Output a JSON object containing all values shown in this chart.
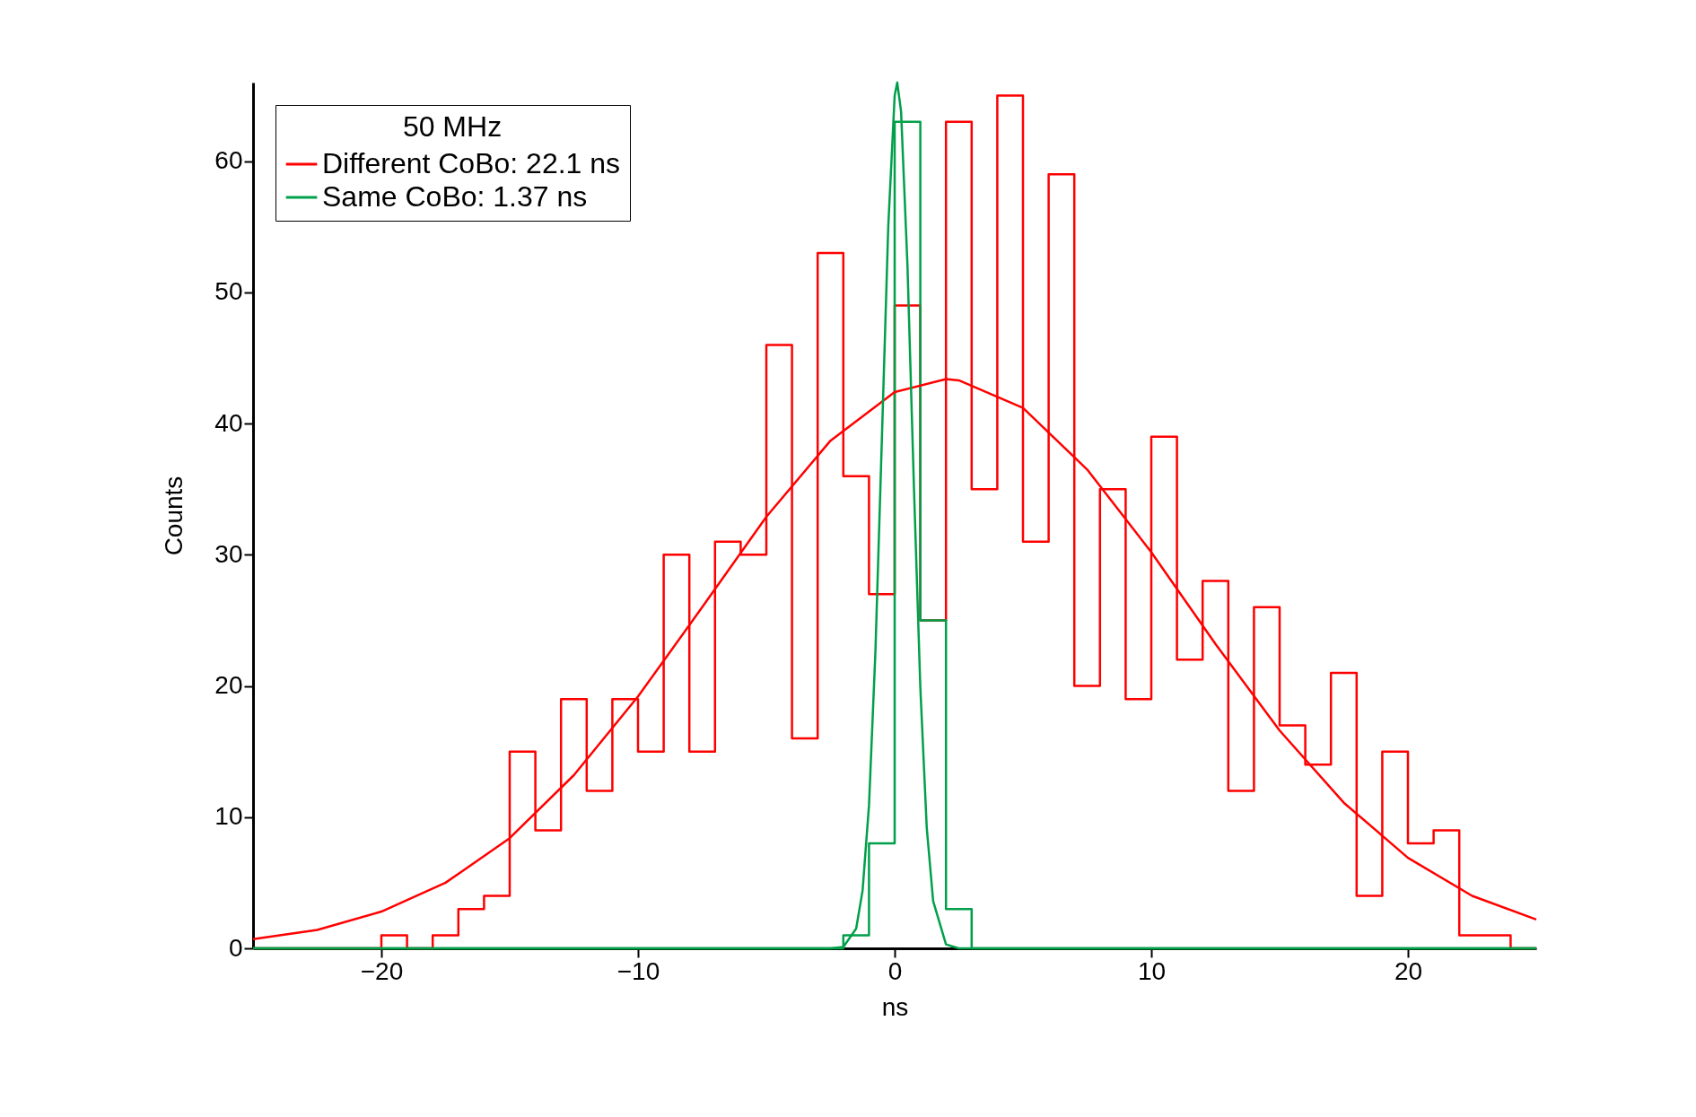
{
  "chart_data": {
    "type": "histogram",
    "xlabel": "ns",
    "ylabel": "Counts",
    "legend_title": "50 MHz",
    "legend": "top left",
    "grid": false,
    "bins": [
      -25,
      -24,
      -23,
      -22,
      -21,
      -20,
      -19,
      -18,
      -17,
      -16,
      -15,
      -14,
      -13,
      -12,
      -11,
      -10,
      -9,
      -8,
      -7,
      -6,
      -5,
      -4,
      -3,
      -2,
      -1,
      0,
      1,
      2,
      3,
      4,
      5,
      6,
      7,
      8,
      9,
      10,
      11,
      12,
      13,
      14,
      15,
      16,
      17,
      18,
      19,
      20,
      21,
      22,
      23,
      24,
      25
    ],
    "xlim": [
      -25,
      25
    ],
    "xticks": [
      -20,
      -10,
      0,
      10,
      20
    ],
    "ylim": [
      0,
      66
    ],
    "yticks": [
      0,
      10,
      20,
      30,
      40,
      50,
      60
    ],
    "series": [
      {
        "color": "#ff0000",
        "values": [
          0,
          0,
          0,
          0,
          0,
          1,
          0,
          1,
          3,
          4,
          15,
          9,
          19,
          12,
          19,
          15,
          30,
          15,
          31,
          30,
          46,
          16,
          53,
          36,
          27,
          49,
          25,
          63,
          35,
          65,
          31,
          59,
          20,
          35,
          19,
          39,
          22,
          28,
          12,
          26,
          17,
          14,
          21,
          4,
          15,
          8,
          9,
          1,
          1,
          0
        ]
      },
      {
        "color": "#00a04a",
        "values": [
          0,
          0,
          0,
          0,
          0,
          0,
          0,
          0,
          0,
          0,
          0,
          0,
          0,
          0,
          0,
          0,
          0,
          0,
          0,
          0,
          0,
          0,
          0,
          1,
          8,
          63,
          25,
          3,
          0,
          0,
          0,
          0,
          0,
          0,
          0,
          0,
          0,
          0,
          0,
          0,
          0,
          0,
          0,
          0,
          0,
          0,
          0,
          0,
          0,
          0
        ]
      },
      {
        "type": "line",
        "name": "Different CoBo: 22.1 ns",
        "color": "#ff0000",
        "x": [
          -25,
          -22.5,
          -20,
          -17.5,
          -15,
          -12.5,
          -10,
          -7.5,
          -5,
          -2.5,
          0,
          2,
          2.5,
          5,
          7.5,
          10,
          12.5,
          15,
          17.5,
          20,
          22.5,
          25
        ],
        "values": [
          0.7,
          1.4,
          2.8,
          5.0,
          8.4,
          13.2,
          19.2,
          26.0,
          32.9,
          38.7,
          42.4,
          43.4,
          43.3,
          41.2,
          36.5,
          30.2,
          23.2,
          16.6,
          11.1,
          6.9,
          4.0,
          2.2
        ]
      },
      {
        "type": "line",
        "name": "Same CoBo: 1.37 ns",
        "color": "#00a04a",
        "x": [
          -25,
          -2.5,
          -2,
          -1.5,
          -1.25,
          -1,
          -0.75,
          -0.5,
          -0.25,
          0,
          0.1,
          0.25,
          0.5,
          0.75,
          1,
          1.25,
          1.5,
          2,
          2.5,
          25
        ],
        "values": [
          0,
          0,
          0.1,
          1.5,
          4.4,
          10.9,
          22.6,
          38.7,
          55,
          65,
          66,
          63.8,
          52,
          35.2,
          19.9,
          9.2,
          3.6,
          0.3,
          0,
          0
        ]
      }
    ]
  }
}
